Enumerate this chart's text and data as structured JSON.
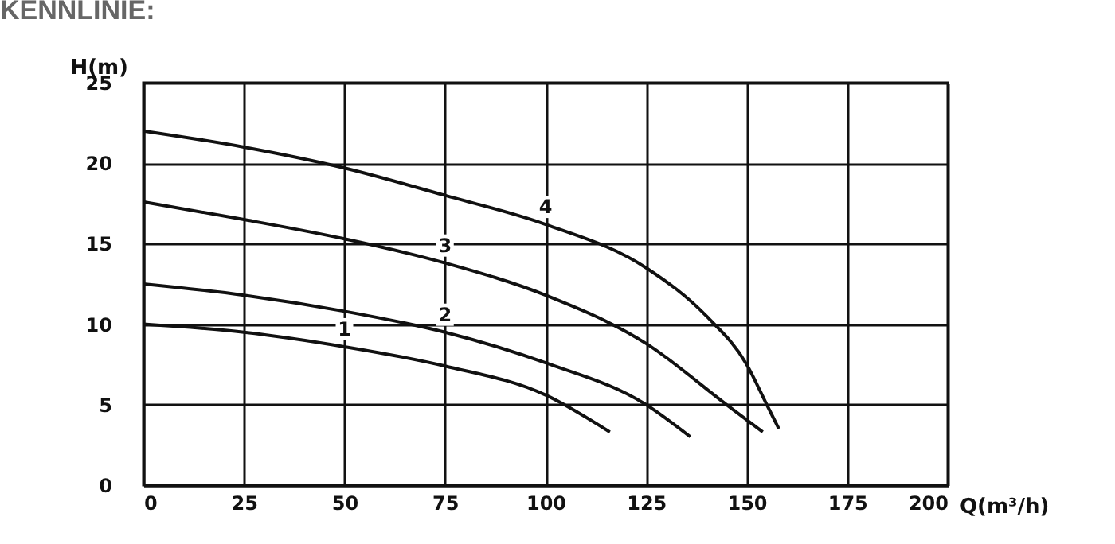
{
  "chart_data": {
    "type": "line",
    "title": "KENNLINIE:",
    "xlabel": "Q(m³/h)",
    "ylabel": "H(m)",
    "xlim": [
      0,
      200
    ],
    "ylim": [
      0,
      25
    ],
    "xticks": [
      0,
      25,
      50,
      75,
      100,
      125,
      150,
      175,
      200
    ],
    "yticks": [
      0,
      5,
      10,
      15,
      20,
      25
    ],
    "grid": true,
    "series": [
      {
        "name": "1",
        "color": "#111111",
        "x": [
          0,
          25,
          50,
          75,
          100,
          116
        ],
        "values": [
          10,
          9.5,
          8.6,
          7.4,
          5.6,
          3.3
        ]
      },
      {
        "name": "2",
        "color": "#111111",
        "x": [
          0,
          25,
          50,
          75,
          100,
          125,
          136
        ],
        "values": [
          12.5,
          11.8,
          10.8,
          9.5,
          7.6,
          5,
          3
        ]
      },
      {
        "name": "3",
        "color": "#111111",
        "x": [
          0,
          25,
          50,
          75,
          100,
          125,
          145,
          154
        ],
        "values": [
          17.6,
          16.5,
          15.3,
          13.8,
          11.8,
          8.8,
          5,
          3.3
        ]
      },
      {
        "name": "4",
        "color": "#111111",
        "x": [
          0,
          25,
          50,
          75,
          100,
          125,
          140,
          150,
          155,
          158
        ],
        "values": [
          22,
          21,
          19.7,
          18,
          16.2,
          13.5,
          10.5,
          7.5,
          5,
          3.5
        ]
      }
    ]
  }
}
